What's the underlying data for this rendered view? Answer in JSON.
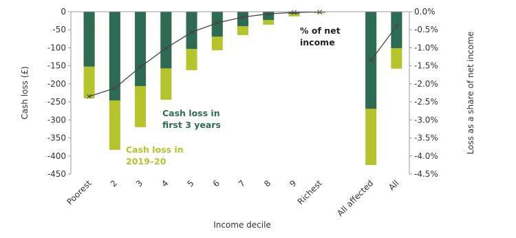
{
  "chart_data": {
    "type": "bar",
    "categories": [
      "Poorest",
      "2",
      "3",
      "4",
      "5",
      "6",
      "7",
      "8",
      "9",
      "Richest",
      null,
      "All affected",
      "All"
    ],
    "series": [
      {
        "name": "Cash loss in 2019–20",
        "color": "#b5c42a",
        "values": [
          -240,
          -383,
          -320,
          -244,
          -162,
          -107,
          -65,
          -36,
          -13,
          -4,
          null,
          -425,
          -158
        ]
      },
      {
        "name": "Cash loss in first 3 years",
        "color": "#2e6b55",
        "values": [
          -152,
          -246,
          -206,
          -157,
          -103,
          -69,
          -40,
          -23,
          -6,
          -2,
          null,
          -269,
          -101
        ]
      },
      {
        "name": "% of net income",
        "color": "#444444",
        "type": "line",
        "axis": "y2",
        "values": [
          -2.35,
          -2.12,
          -1.53,
          -1.01,
          -0.57,
          -0.31,
          -0.15,
          -0.06,
          -0.02,
          -0.01,
          null,
          -1.35,
          -0.4
        ]
      }
    ],
    "annotations": [
      [
        "Cash loss in",
        "2019–20"
      ],
      [
        "Cash loss in",
        "first 3 years"
      ],
      [
        "% of net",
        "income"
      ]
    ],
    "xlabel": "Income decile",
    "ylabel": "Cash loss (£)",
    "y2label": "Loss as a share of net income",
    "ylim": [
      0,
      -450
    ],
    "yticks": [
      0,
      -50,
      -100,
      -150,
      -200,
      -250,
      -300,
      -350,
      -400,
      -450
    ],
    "y2lim": [
      0,
      -4.5
    ],
    "y2ticks": [
      {
        "value": 0,
        "label": "0.0%"
      },
      {
        "value": -0.5,
        "label": "-0.5%"
      },
      {
        "value": -1,
        "label": "-1.0%"
      },
      {
        "value": -1.5,
        "label": "-1.5%"
      },
      {
        "value": -2,
        "label": "-2.0%"
      },
      {
        "value": -2.5,
        "label": "-2.5%"
      },
      {
        "value": -3,
        "label": "-3.0%"
      },
      {
        "value": -3.5,
        "label": "-3.5%"
      },
      {
        "value": -4,
        "label": "-4.0%"
      },
      {
        "value": -4.5,
        "label": "-4.5%"
      }
    ],
    "grid": false
  }
}
